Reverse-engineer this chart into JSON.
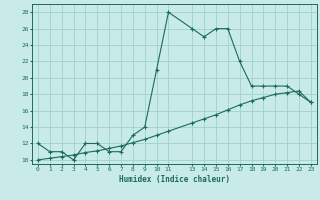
{
  "xlabel": "Humidex (Indice chaleur)",
  "ylabel": "",
  "bg_color": "#c8ebe8",
  "grid_color": "#a0d0cc",
  "line_color": "#1a6b5a",
  "xlim": [
    -0.5,
    23.5
  ],
  "ylim": [
    9.5,
    29
  ],
  "xticks": [
    0,
    1,
    2,
    3,
    4,
    5,
    6,
    7,
    8,
    9,
    10,
    11,
    13,
    14,
    15,
    16,
    17,
    18,
    19,
    20,
    21,
    22,
    23
  ],
  "yticks": [
    10,
    12,
    14,
    16,
    18,
    20,
    22,
    24,
    26,
    28
  ],
  "curve1_x": [
    0,
    1,
    2,
    3,
    4,
    5,
    6,
    7,
    8,
    9,
    10,
    11,
    13,
    14,
    15,
    16,
    17,
    18,
    19,
    20,
    21,
    22,
    23
  ],
  "curve1_y": [
    12,
    11,
    11,
    10,
    12,
    12,
    11,
    11,
    13,
    14,
    21,
    28,
    26,
    25,
    26,
    26,
    22,
    19,
    19,
    19,
    19,
    18,
    17
  ],
  "curve2_x": [
    0,
    1,
    2,
    3,
    4,
    5,
    6,
    7,
    8,
    9,
    10,
    11,
    13,
    14,
    15,
    16,
    17,
    18,
    19,
    20,
    21,
    22,
    23
  ],
  "curve2_y": [
    10,
    10.2,
    10.4,
    10.6,
    10.9,
    11.1,
    11.4,
    11.7,
    12.1,
    12.5,
    13.0,
    13.5,
    14.5,
    15.0,
    15.5,
    16.1,
    16.7,
    17.2,
    17.6,
    18.0,
    18.2,
    18.4,
    17.0
  ]
}
